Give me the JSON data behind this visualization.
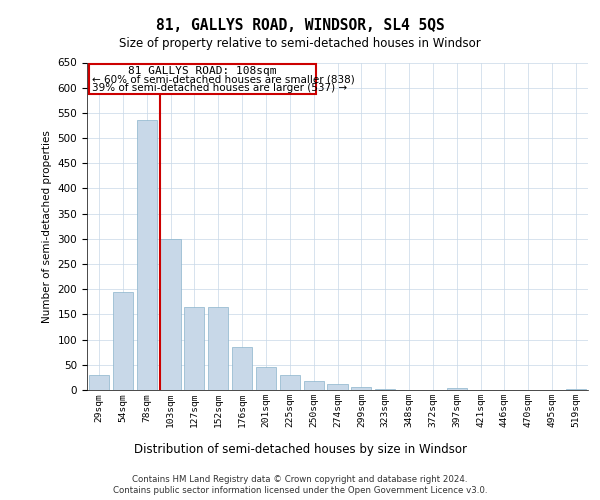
{
  "title": "81, GALLYS ROAD, WINDSOR, SL4 5QS",
  "subtitle": "Size of property relative to semi-detached houses in Windsor",
  "xlabel": "Distribution of semi-detached houses by size in Windsor",
  "ylabel": "Number of semi-detached properties",
  "footer_line1": "Contains HM Land Registry data © Crown copyright and database right 2024.",
  "footer_line2": "Contains public sector information licensed under the Open Government Licence v3.0.",
  "property_label": "81 GALLYS ROAD: 108sqm",
  "annotation_line1": "← 60% of semi-detached houses are smaller (838)",
  "annotation_line2": "39% of semi-detached houses are larger (537) →",
  "bar_color": "#c8d8e8",
  "bar_edge_color": "#8ab4cc",
  "red_line_color": "#cc0000",
  "annotation_box_color": "#cc0000",
  "grid_color": "#c8d8e8",
  "background_color": "#ffffff",
  "ylim": [
    0,
    650
  ],
  "yticks": [
    0,
    50,
    100,
    150,
    200,
    250,
    300,
    350,
    400,
    450,
    500,
    550,
    600,
    650
  ],
  "categories": [
    "29sqm",
    "54sqm",
    "78sqm",
    "103sqm",
    "127sqm",
    "152sqm",
    "176sqm",
    "201sqm",
    "225sqm",
    "250sqm",
    "274sqm",
    "299sqm",
    "323sqm",
    "348sqm",
    "372sqm",
    "397sqm",
    "421sqm",
    "446sqm",
    "470sqm",
    "495sqm",
    "519sqm"
  ],
  "values": [
    30,
    195,
    535,
    300,
    165,
    165,
    85,
    45,
    30,
    18,
    12,
    5,
    2,
    0,
    0,
    3,
    0,
    0,
    0,
    0,
    2
  ],
  "red_line_bin_index": 3
}
